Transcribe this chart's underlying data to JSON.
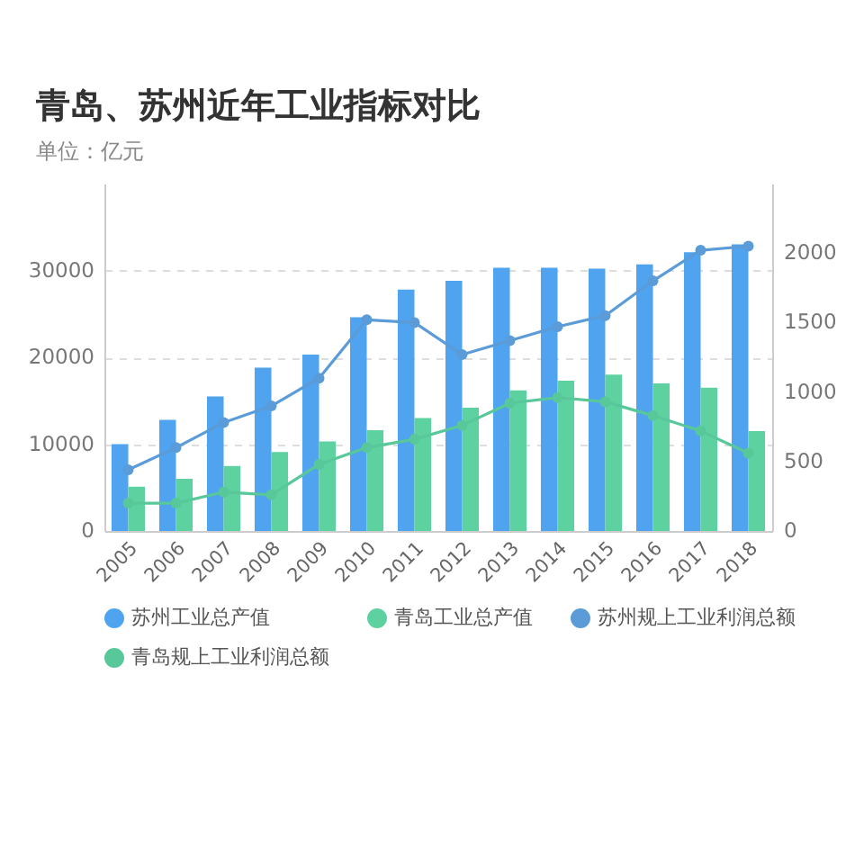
{
  "chart_data": {
    "type": "bar",
    "title": "青岛、苏州近年工业指标对比",
    "subtitle": "单位：亿元",
    "categories": [
      "2005",
      "2006",
      "2007",
      "2008",
      "2009",
      "2010",
      "2011",
      "2012",
      "2013",
      "2014",
      "2015",
      "2016",
      "2017",
      "2018"
    ],
    "series": [
      {
        "name": "苏州工业总产值",
        "color": "#4fa3ef",
        "values": [
          10000,
          12800,
          15500,
          18800,
          20300,
          24600,
          27800,
          28800,
          30300,
          30300,
          30200,
          30700,
          32100,
          33000
        ]
      },
      {
        "name": "青岛工业总产值",
        "color": "#5dd1a0",
        "values": [
          5100,
          6000,
          7500,
          9100,
          10300,
          11600,
          13000,
          14200,
          16200,
          17300,
          18000,
          17000,
          16500,
          11500
        ]
      },
      {
        "name": "苏州规上工业利润总额",
        "type": "line",
        "axis": "y2",
        "color": "#5a9bd8",
        "values": [
          440,
          600,
          780,
          900,
          1100,
          1520,
          1500,
          1270,
          1370,
          1470,
          1550,
          1800,
          2020,
          2050
        ]
      },
      {
        "name": "青岛规上工业利润总额",
        "type": "line",
        "axis": "y2",
        "color": "#58c89a",
        "values": [
          200,
          200,
          280,
          260,
          480,
          600,
          660,
          760,
          920,
          960,
          930,
          830,
          720,
          560
        ]
      }
    ],
    "ylim": [
      0,
      40000
    ],
    "yticks": [
      0,
      10000,
      20000,
      30000
    ],
    "y2lim": [
      0,
      2500
    ],
    "y2ticks": [
      0,
      500,
      1000,
      1500,
      2000
    ],
    "grid": "y",
    "legend": "bottom",
    "marker": "circle"
  }
}
